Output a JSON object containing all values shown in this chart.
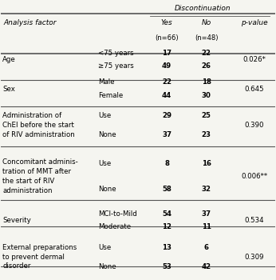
{
  "title": "Discontinuation",
  "col_header_main": "Analysis factor",
  "col_yes": "Yes",
  "col_no": "No",
  "col_yes_n": "(n=66)",
  "col_no_n": "(n=48)",
  "col_pvalue": "p-value",
  "rows": [
    {
      "factor": "Age",
      "sub1": "<75 years",
      "yes1": "17",
      "no1": "22",
      "sub2": "≥75 years",
      "yes2": "49",
      "no2": "26",
      "pvalue": "0.026*",
      "nrows": 2
    },
    {
      "factor": "Sex",
      "sub1": "Male",
      "yes1": "22",
      "no1": "18",
      "sub2": "Female",
      "yes2": "44",
      "no2": "30",
      "pvalue": "0.645",
      "nrows": 2
    },
    {
      "factor": "Administration of\nChEI before the start\nof RIV administration",
      "sub1": "Use",
      "yes1": "29",
      "no1": "25",
      "sub2": "None",
      "yes2": "37",
      "no2": "23",
      "pvalue": "0.390",
      "nrows": 2
    },
    {
      "factor": "Concomitant adminis-\ntration of MMT after\nthe start of RIV\nadministration",
      "sub1": "Use",
      "yes1": "8",
      "no1": "16",
      "sub2": "None",
      "yes2": "58",
      "no2": "32",
      "pvalue": "0.006**",
      "nrows": 2
    },
    {
      "factor": "Severity",
      "sub1": "MCI-to-Mild",
      "yes1": "54",
      "no1": "37",
      "sub2": "Moderate",
      "yes2": "12",
      "no2": "11",
      "pvalue": "0.534",
      "nrows": 2
    },
    {
      "factor": "External preparations\nto prevent dermal\ndisorder",
      "sub1": "Use",
      "yes1": "13",
      "no1": "6",
      "sub2": "None",
      "yes2": "53",
      "no2": "42",
      "pvalue": "0.309",
      "nrows": 2
    }
  ],
  "bg_color": "#f5f5f0",
  "text_color": "#000000",
  "line_color": "#555555"
}
